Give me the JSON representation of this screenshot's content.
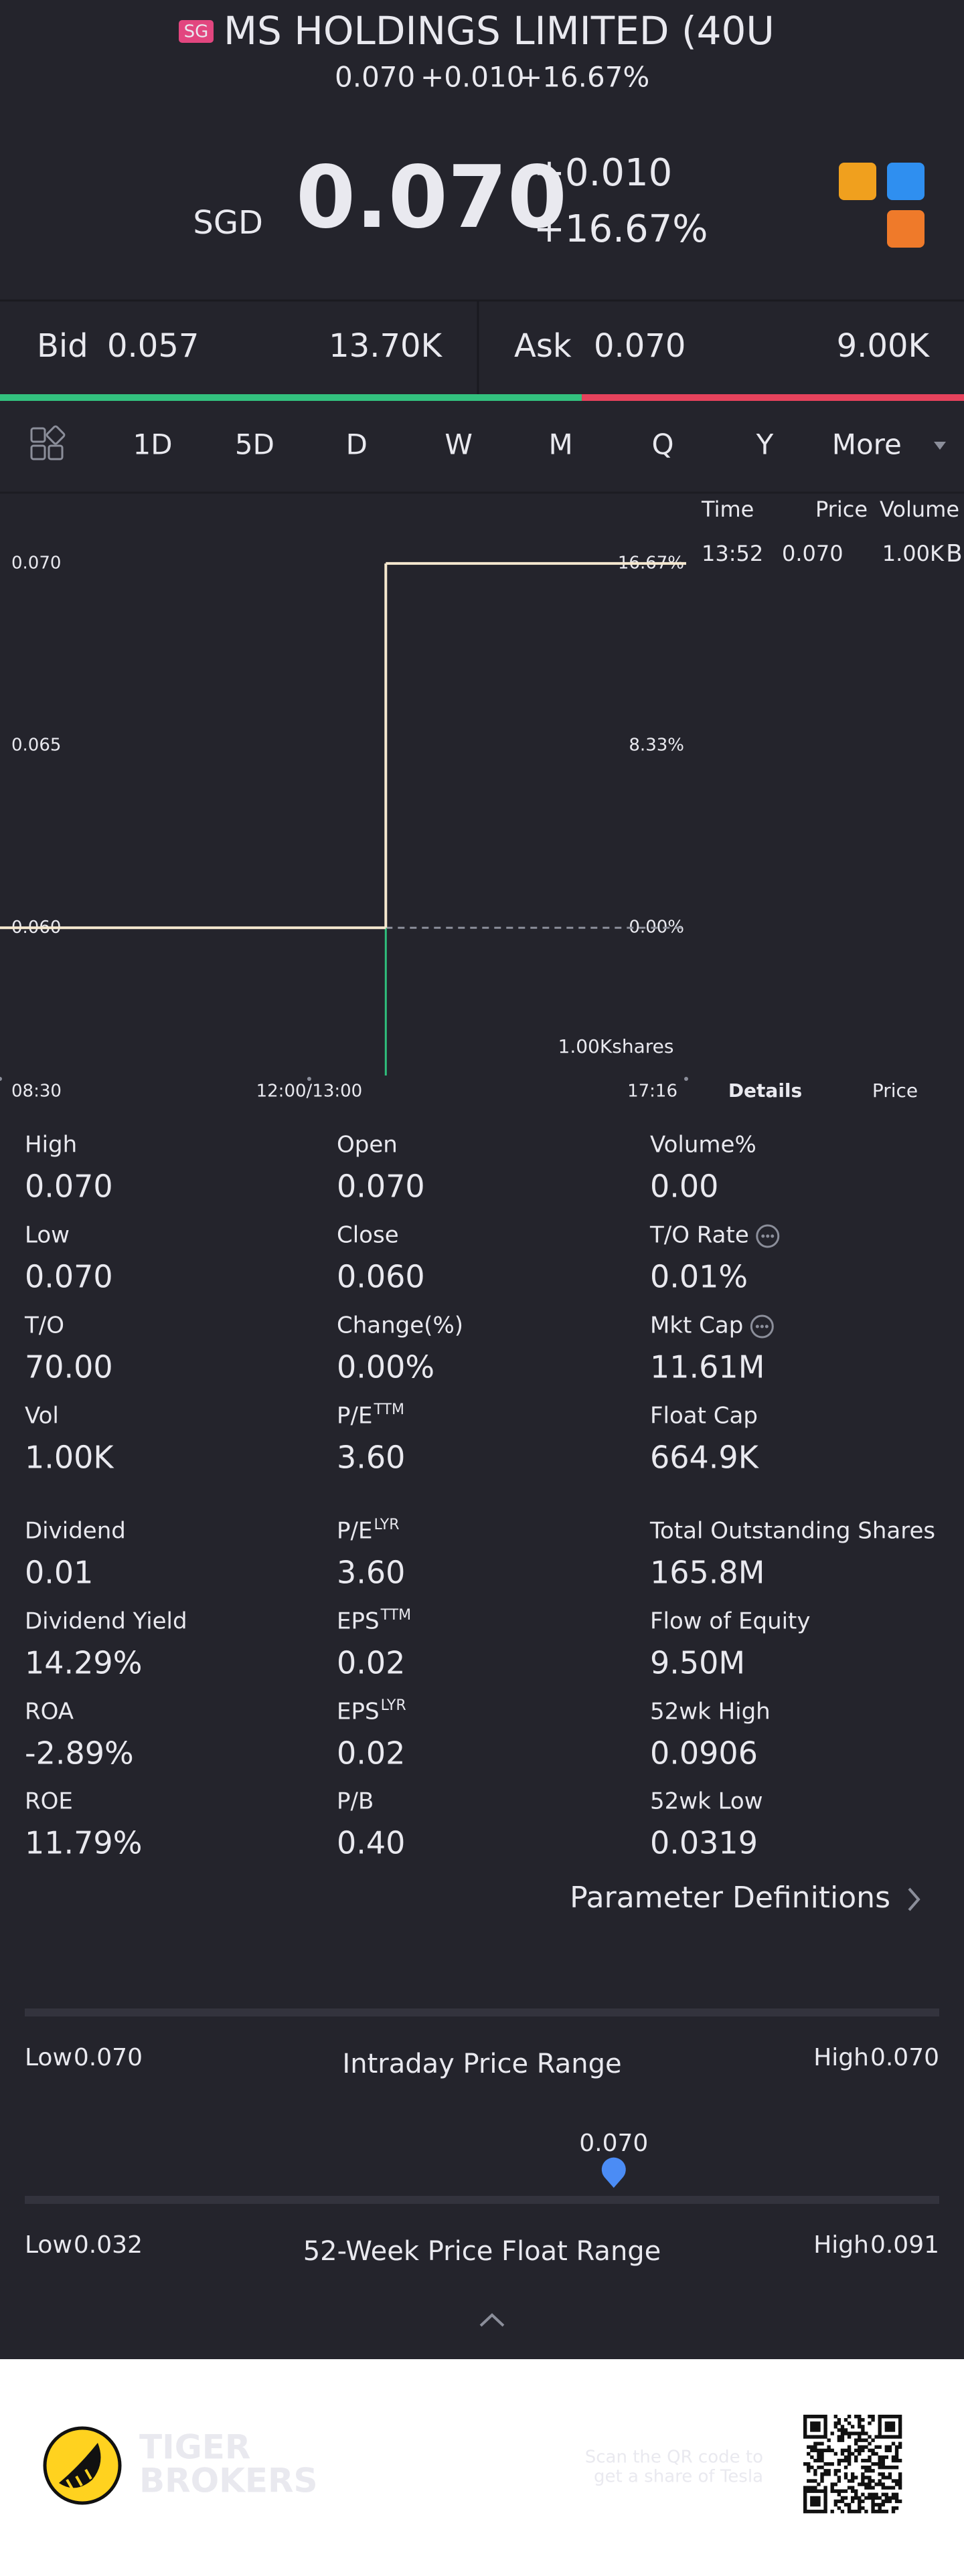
{
  "header": {
    "badge": "SG",
    "title": "MS HOLDINGS LIMITED (40U",
    "last": "0.070",
    "change": "+0.010",
    "change_pct": "+16.67%"
  },
  "quote": {
    "currency": "SGD",
    "price": "0.070",
    "change": "+0.010",
    "change_pct": "+16.67%"
  },
  "order_book": {
    "bid_label": "Bid",
    "bid": "0.057",
    "bid_size": {
      "value": 13700,
      "label": "13.70K"
    },
    "ask_label": "Ask",
    "ask": "0.070",
    "ask_size": {
      "value": 9000,
      "label": "9.00K"
    }
  },
  "tabs": {
    "items": [
      "1D",
      "5D",
      "D",
      "W",
      "M",
      "Q",
      "Y",
      "More"
    ],
    "active": 0
  },
  "chart_data": {
    "type": "line",
    "step": "post",
    "x": [
      "08:30",
      "13:52"
    ],
    "series": [
      {
        "color": "#f5e8cf",
        "values": [
          0.06,
          0.07
        ]
      }
    ],
    "reference_line": 0.06,
    "xticks": [
      "08:30",
      "12:00/13:00",
      "17:16"
    ],
    "ylim": [
      0.056,
      0.072
    ],
    "yticks": [
      {
        "value": 0.06,
        "label": "0.060"
      },
      {
        "value": 0.065,
        "label": "0.065"
      },
      {
        "value": 0.07,
        "label": "0.070"
      }
    ],
    "y2lim": [
      -6.67,
      20
    ],
    "y2ticks": [
      {
        "value": 0,
        "label": "0.00%"
      },
      {
        "value": 8.33,
        "label": "8.33%"
      },
      {
        "value": 16.67,
        "label": "16.67%"
      }
    ],
    "volume": {
      "x": [
        "13:52"
      ],
      "values": [
        1000
      ],
      "ylim": [
        0,
        1000
      ],
      "label": "1.00Kshares",
      "color": "#2fbf7c"
    }
  },
  "trades": {
    "columns": [
      "Time",
      "Price",
      "Volume"
    ],
    "rows": [
      [
        "13:52",
        "0.070",
        "1.00K",
        "B"
      ]
    ]
  },
  "panel_tabs": {
    "items": [
      "Details",
      "Price"
    ],
    "active": 0
  },
  "stats": [
    {
      "label": "High",
      "value": "0.070"
    },
    {
      "label": "Open",
      "value": "0.070"
    },
    {
      "label": "Volume%",
      "value": "0.00"
    },
    {
      "label": "Low",
      "value": "0.070"
    },
    {
      "label": "Close",
      "value": "0.060"
    },
    {
      "label": "T/O Rate",
      "value": "0.01%",
      "info": true
    },
    {
      "label": "T/O",
      "value": "70.00"
    },
    {
      "label": "Change(%)",
      "value": "0.00%"
    },
    {
      "label": "Mkt Cap",
      "value": "11.61M",
      "info": true
    },
    {
      "label": "Vol",
      "value": "1.00K"
    },
    {
      "label": "P/E",
      "sup": "TTM",
      "value": "3.60"
    },
    {
      "label": "Float Cap",
      "value": "664.9K"
    },
    {
      "label": "Dividend",
      "value": "0.01"
    },
    {
      "label": "P/E",
      "sup": "LYR",
      "value": "3.60"
    },
    {
      "label": "Total Outstanding Shares",
      "value": "165.8M"
    },
    {
      "label": "Dividend Yield",
      "value": "14.29%"
    },
    {
      "label": "EPS",
      "sup": "TTM",
      "value": "0.02"
    },
    {
      "label": "Flow of Equity",
      "value": "9.50M"
    },
    {
      "label": "ROA",
      "value": "-2.89%"
    },
    {
      "label": "EPS",
      "sup": "LYR",
      "value": "0.02"
    },
    {
      "label": "52wk High",
      "value": "0.0906"
    },
    {
      "label": "ROE",
      "value": "11.79%"
    },
    {
      "label": "P/B",
      "value": "0.40"
    },
    {
      "label": "52wk Low",
      "value": "0.0319"
    }
  ],
  "parameter_definitions": "Parameter Definitions",
  "ranges": [
    {
      "title": "Intraday Price Range",
      "low_label": "Low",
      "low": {
        "value": 0.07,
        "label": "0.070"
      },
      "high_label": "High",
      "high": {
        "value": 0.07,
        "label": "0.070"
      }
    },
    {
      "title": "52-Week Price Float Range",
      "current": {
        "value": 0.07,
        "label": "0.070"
      },
      "low_label": "Low",
      "low": {
        "value": 0.032,
        "label": "0.032"
      },
      "high_label": "High",
      "high": {
        "value": 0.091,
        "label": "0.091"
      }
    }
  ],
  "footer": {
    "brand_line1": "TIGER",
    "brand_line2": "BROKERS",
    "scan_line1": "Scan the QR code to",
    "scan_line2": "get a share of Tesla"
  }
}
